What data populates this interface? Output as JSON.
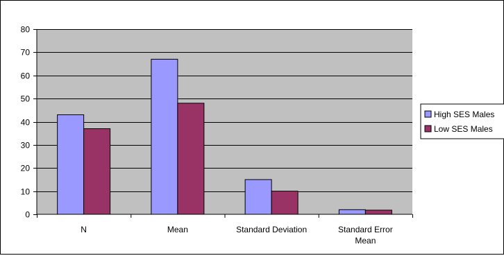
{
  "chart_data": {
    "type": "bar",
    "categories": [
      "N",
      "Mean",
      "Standard Deviation",
      "Standard Error Mean"
    ],
    "category_lines": [
      [
        "N"
      ],
      [
        "Mean"
      ],
      [
        "Standard Deviation"
      ],
      [
        "Standard Error",
        "Mean"
      ]
    ],
    "series": [
      {
        "name": "High SES Males",
        "values": [
          43,
          67,
          15,
          2
        ],
        "color": "#9999ff"
      },
      {
        "name": "Low SES Males",
        "values": [
          37,
          48,
          10,
          1.8
        ],
        "color": "#993366"
      }
    ],
    "ylim": [
      0,
      80
    ],
    "yticks": [
      0,
      10,
      20,
      30,
      40,
      50,
      60,
      70,
      80
    ],
    "grid": true,
    "plot_background": "#c0c0c0",
    "legend_position": "right"
  }
}
